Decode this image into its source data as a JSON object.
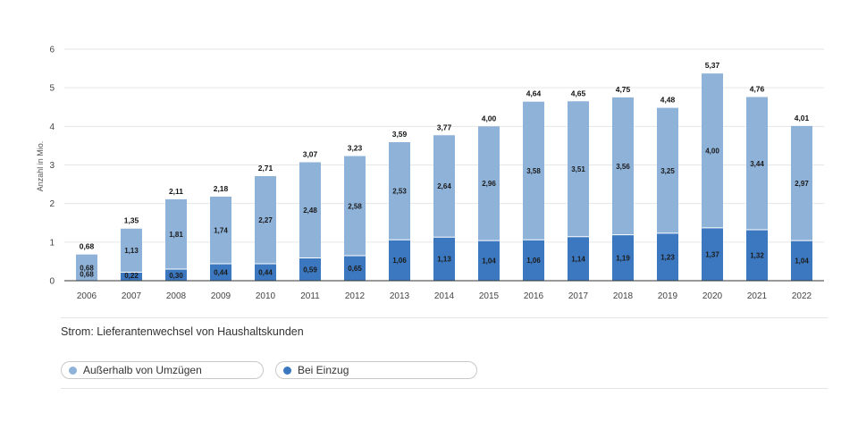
{
  "colors": {
    "outside_moves": "#8fb2d9",
    "move_in": "#3c78bf",
    "grid": "#e6e6e6",
    "axis": "#333333",
    "text": "#444444"
  },
  "chart_data": {
    "type": "bar",
    "stacked": true,
    "title": "Strom: Lieferantenwechsel von Haushaltskunden",
    "ylabel": "Anzahl in Mio.",
    "xlabel": "",
    "ylim": [
      0,
      6
    ],
    "yticks": [
      "0",
      "1",
      "2",
      "3",
      "4",
      "5",
      "6"
    ],
    "grid": true,
    "legend_position": "bottom",
    "categories": [
      "2006",
      "2007",
      "2008",
      "2009",
      "2010",
      "2011",
      "2012",
      "2013",
      "2014",
      "2015",
      "2016",
      "2017",
      "2018",
      "2019",
      "2020",
      "2021",
      "2022"
    ],
    "series": [
      {
        "name": "Bei Einzug",
        "values": [
          0,
          0.22,
          0.3,
          0.44,
          0.44,
          0.59,
          0.65,
          1.06,
          1.13,
          1.04,
          1.06,
          1.14,
          1.19,
          1.23,
          1.37,
          1.32,
          1.04
        ],
        "labels": [
          "",
          "0,22",
          "0,30",
          "0,44",
          "0,44",
          "0,59",
          "0,65",
          "1,06",
          "1,13",
          "1,04",
          "1,06",
          "1,14",
          "1,19",
          "1,23",
          "1,37",
          "1,32",
          "1,04"
        ]
      },
      {
        "name": "Außerhalb von Umzügen",
        "values": [
          0.68,
          1.13,
          1.81,
          1.74,
          2.27,
          2.48,
          2.58,
          2.53,
          2.64,
          2.96,
          3.58,
          3.51,
          3.56,
          3.25,
          4.0,
          3.44,
          2.97
        ],
        "labels": [
          "0,68",
          "1,13",
          "1,81",
          "1,74",
          "2,27",
          "2,48",
          "2,58",
          "2,53",
          "2,64",
          "2,96",
          "3,58",
          "3,51",
          "3,56",
          "3,25",
          "4,00",
          "3,44",
          "2,97"
        ]
      }
    ],
    "totals": [
      0.68,
      1.35,
      2.11,
      2.18,
      2.71,
      3.07,
      3.23,
      3.59,
      3.77,
      4.0,
      4.64,
      4.65,
      4.75,
      4.48,
      5.37,
      4.76,
      4.01
    ],
    "total_labels": [
      "0,68",
      "1,35",
      "2,11",
      "2,18",
      "2,71",
      "3,07",
      "3,23",
      "3,59",
      "3,77",
      "4,00",
      "4,64",
      "4,65",
      "4,75",
      "4,48",
      "5,37",
      "4,76",
      "4,01"
    ],
    "extra_inner_labels": [
      "0,68",
      "",
      "",
      "",
      "",
      "",
      "",
      "",
      "",
      "",
      "",
      "",
      "",
      "",
      "",
      "",
      ""
    ]
  },
  "legend": {
    "items": [
      {
        "label": "Außerhalb von Umzügen"
      },
      {
        "label": "Bei Einzug"
      }
    ]
  }
}
